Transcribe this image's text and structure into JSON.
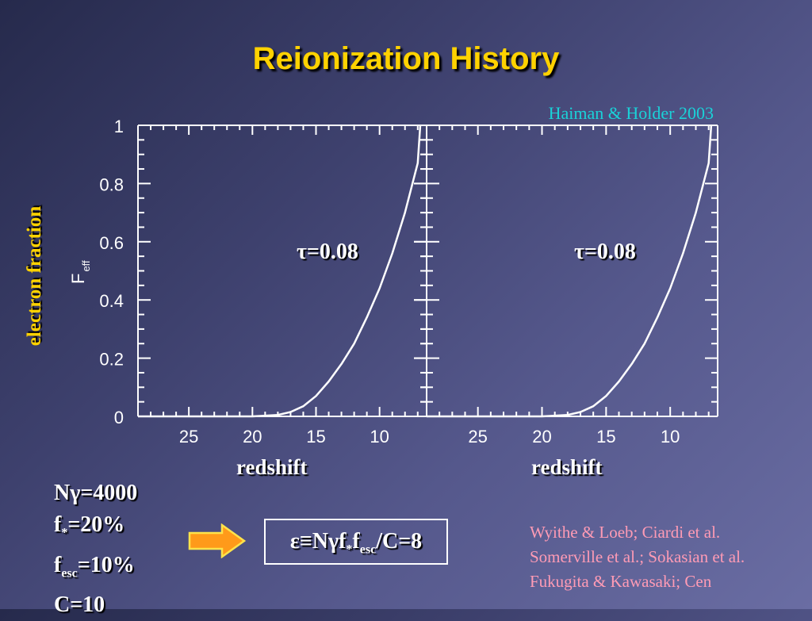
{
  "title": "Reionization History",
  "citation": "Haiman & Holder 2003",
  "y_axis_title": "electron fraction",
  "inner_ylabel_main": "F",
  "inner_ylabel_sub": "eff",
  "params": {
    "ngamma_prefix": "N",
    "ngamma_sym": "γ",
    "ngamma_val": "=4000",
    "fstar_prefix": "f",
    "fstar_sub": "*",
    "fstar_val": "=20%",
    "fesc_prefix": "f",
    "fesc_sub": "esc",
    "fesc_val": "=10%",
    "clump": "C=10"
  },
  "formula": {
    "eps": "ε≡N",
    "gamma": "γ",
    "f": "f",
    "star": "*",
    "f2": "f",
    "esc": "esc",
    "rest": "/C=8"
  },
  "references": [
    "Wyithe & Loeb; Ciardi et al.",
    "Somerville et al.; Sokasian et al.",
    "Fukugita & Kawasaki; Cen"
  ],
  "colors": {
    "title": "#ffd200",
    "citation": "#1ad2d8",
    "references": "#ff9bb5",
    "arrow": "#ff9a1a"
  },
  "chart_data": [
    {
      "type": "line",
      "xlabel": "redshift",
      "ylabel": "F_eff",
      "annotation": "τ=0.08",
      "xlim": [
        29,
        6.3
      ],
      "ylim": [
        0,
        1
      ],
      "x_ticks": [
        25,
        20,
        15,
        10
      ],
      "y_ticks": [
        0,
        0.2,
        0.4,
        0.6,
        0.8,
        1
      ],
      "y_tick_labels": [
        "0",
        "0.2",
        "0.4",
        "0.6",
        "0.8",
        "1"
      ],
      "series": [
        {
          "x": [
            29,
            20,
            18,
            17,
            16,
            15,
            14,
            13,
            12,
            11,
            10,
            9,
            8,
            7,
            6.8
          ],
          "y": [
            0,
            0,
            0.005,
            0.015,
            0.035,
            0.07,
            0.12,
            0.18,
            0.25,
            0.34,
            0.44,
            0.56,
            0.7,
            0.87,
            1.0
          ]
        }
      ]
    },
    {
      "type": "line",
      "xlabel": "redshift",
      "ylabel": "",
      "annotation": "τ=0.08",
      "xlim": [
        29,
        6.3
      ],
      "ylim": [
        0,
        1
      ],
      "x_ticks": [
        25,
        20,
        15,
        10
      ],
      "y_ticks": [
        0,
        0.2,
        0.4,
        0.6,
        0.8,
        1
      ],
      "y_tick_labels": [],
      "series": [
        {
          "x": [
            29,
            20,
            18,
            17,
            16,
            15,
            14,
            13,
            12,
            11,
            10,
            9,
            8,
            7,
            6.8
          ],
          "y": [
            0,
            0,
            0.005,
            0.015,
            0.035,
            0.07,
            0.12,
            0.18,
            0.25,
            0.34,
            0.44,
            0.56,
            0.7,
            0.87,
            1.0
          ]
        }
      ]
    }
  ]
}
